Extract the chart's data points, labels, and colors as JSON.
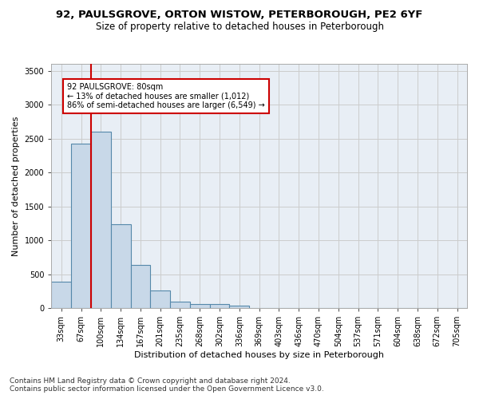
{
  "title_line1": "92, PAULSGROVE, ORTON WISTOW, PETERBOROUGH, PE2 6YF",
  "title_line2": "Size of property relative to detached houses in Peterborough",
  "xlabel": "Distribution of detached houses by size in Peterborough",
  "ylabel": "Number of detached properties",
  "categories": [
    "33sqm",
    "67sqm",
    "100sqm",
    "134sqm",
    "167sqm",
    "201sqm",
    "235sqm",
    "268sqm",
    "302sqm",
    "336sqm",
    "369sqm",
    "403sqm",
    "436sqm",
    "470sqm",
    "504sqm",
    "537sqm",
    "571sqm",
    "604sqm",
    "638sqm",
    "672sqm",
    "705sqm"
  ],
  "values": [
    390,
    2420,
    2600,
    1240,
    640,
    255,
    95,
    60,
    55,
    40,
    0,
    0,
    0,
    0,
    0,
    0,
    0,
    0,
    0,
    0,
    0
  ],
  "bar_color": "#c8d8e8",
  "bar_edge_color": "#5588aa",
  "bar_edge_width": 0.8,
  "redline_x": 1.5,
  "annotation_text": "92 PAULSGROVE: 80sqm\n← 13% of detached houses are smaller (1,012)\n86% of semi-detached houses are larger (6,549) →",
  "annotation_box_color": "#ffffff",
  "annotation_box_edge": "#cc0000",
  "redline_color": "#cc0000",
  "ylim": [
    0,
    3600
  ],
  "yticks": [
    0,
    500,
    1000,
    1500,
    2000,
    2500,
    3000,
    3500
  ],
  "grid_color": "#cccccc",
  "bg_color": "#e8eef5",
  "footnote1": "Contains HM Land Registry data © Crown copyright and database right 2024.",
  "footnote2": "Contains public sector information licensed under the Open Government Licence v3.0.",
  "title_fontsize": 9.5,
  "subtitle_fontsize": 8.5,
  "xlabel_fontsize": 8,
  "ylabel_fontsize": 8,
  "tick_fontsize": 7,
  "footnote_fontsize": 6.5
}
